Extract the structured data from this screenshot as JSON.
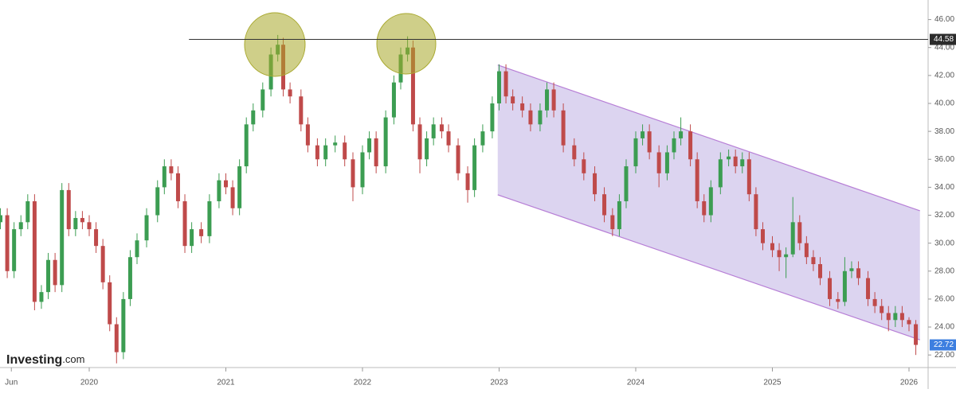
{
  "logo": {
    "brand": "Investing",
    "suffix": ".com"
  },
  "chart_data": {
    "type": "candlestick",
    "x": [
      2019.35,
      2019.4,
      2019.45,
      2019.5,
      2019.55,
      2019.6,
      2019.65,
      2019.7,
      2019.75,
      2019.8,
      2019.85,
      2019.9,
      2019.95,
      2020.0,
      2020.05,
      2020.1,
      2020.15,
      2020.2,
      2020.25,
      2020.3,
      2020.35,
      2020.42,
      2020.5,
      2020.55,
      2020.6,
      2020.65,
      2020.7,
      2020.75,
      2020.82,
      2020.88,
      2020.95,
      2021.0,
      2021.05,
      2021.1,
      2021.15,
      2021.2,
      2021.27,
      2021.33,
      2021.38,
      2021.42,
      2021.47,
      2021.55,
      2021.6,
      2021.67,
      2021.73,
      2021.8,
      2021.87,
      2021.93,
      2022.0,
      2022.05,
      2022.1,
      2022.17,
      2022.23,
      2022.28,
      2022.33,
      2022.37,
      2022.42,
      2022.47,
      2022.52,
      2022.58,
      2022.63,
      2022.7,
      2022.77,
      2022.82,
      2022.88,
      2022.95,
      2023.0,
      2023.05,
      2023.1,
      2023.17,
      2023.23,
      2023.3,
      2023.35,
      2023.4,
      2023.47,
      2023.55,
      2023.62,
      2023.7,
      2023.77,
      2023.83,
      2023.88,
      2023.93,
      2024.0,
      2024.05,
      2024.1,
      2024.17,
      2024.23,
      2024.28,
      2024.33,
      2024.4,
      2024.45,
      2024.5,
      2024.55,
      2024.62,
      2024.68,
      2024.73,
      2024.78,
      2024.83,
      2024.88,
      2024.93,
      2025.0,
      2025.05,
      2025.1,
      2025.15,
      2025.2,
      2025.25,
      2025.3,
      2025.35,
      2025.42,
      2025.48,
      2025.53,
      2025.58,
      2025.63,
      2025.7,
      2025.75,
      2025.8,
      2025.85,
      2025.9,
      2025.95,
      2026.0,
      2026.05
    ],
    "open": [
      31.5,
      32.0,
      28.0,
      31.0,
      31.5,
      33.0,
      25.8,
      26.5,
      28.8,
      27.0,
      33.8,
      31.0,
      31.8,
      31.5,
      31.0,
      29.8,
      27.2,
      24.2,
      22.2,
      26.0,
      29.0,
      30.2,
      32.0,
      34.0,
      35.5,
      35.0,
      33.0,
      29.8,
      31.0,
      30.5,
      33.0,
      34.5,
      34.0,
      32.5,
      35.5,
      38.5,
      39.5,
      41.0,
      43.5,
      44.2,
      41.0,
      40.5,
      38.5,
      37.0,
      36.0,
      37.0,
      37.2,
      36.0,
      34.0,
      36.5,
      37.5,
      35.5,
      39.0,
      41.5,
      43.5,
      44.0,
      38.5,
      36.0,
      37.5,
      38.5,
      38.0,
      37.0,
      35.0,
      33.8,
      37.0,
      38.0,
      40.0,
      42.3,
      40.5,
      40.0,
      39.5,
      38.5,
      39.5,
      41.0,
      39.5,
      37.0,
      36.0,
      35.0,
      33.5,
      32.0,
      31.0,
      33.0,
      35.5,
      37.5,
      38.0,
      36.5,
      35.0,
      36.5,
      37.5,
      38.0,
      36.0,
      33.0,
      32.0,
      34.0,
      36.0,
      36.2,
      35.5,
      36.0,
      33.5,
      31.0,
      30.0,
      29.5,
      29.0,
      29.2,
      31.5,
      30.0,
      29.0,
      28.5,
      27.5,
      26.0,
      25.8,
      28.0,
      28.2,
      27.5,
      26.0,
      25.5,
      25.0,
      24.5,
      25.0,
      24.5,
      24.2
    ],
    "high": [
      32.5,
      32.5,
      31.5,
      32.0,
      33.5,
      33.5,
      27.0,
      29.3,
      29.3,
      34.3,
      34.3,
      32.3,
      32.3,
      32.0,
      31.5,
      30.3,
      27.7,
      24.7,
      26.5,
      29.5,
      30.7,
      32.5,
      34.5,
      36.0,
      36.0,
      35.5,
      33.5,
      31.5,
      31.5,
      33.5,
      35.0,
      35.0,
      34.5,
      36.0,
      39.0,
      40.0,
      41.5,
      44.0,
      44.9,
      44.7,
      41.5,
      41.0,
      39.0,
      37.5,
      37.5,
      37.7,
      37.7,
      36.5,
      37.0,
      38.0,
      38.0,
      39.5,
      42.0,
      44.0,
      44.8,
      44.5,
      39.0,
      38.0,
      39.0,
      39.0,
      38.5,
      37.5,
      35.5,
      37.5,
      38.5,
      40.5,
      42.8,
      42.8,
      41.0,
      40.5,
      40.0,
      40.0,
      41.5,
      41.5,
      40.0,
      37.5,
      36.5,
      35.5,
      34.0,
      32.5,
      33.5,
      36.0,
      38.0,
      38.5,
      38.5,
      37.0,
      37.0,
      38.0,
      39.0,
      38.5,
      36.5,
      33.5,
      34.5,
      36.5,
      36.7,
      36.7,
      36.5,
      36.5,
      34.0,
      31.5,
      30.5,
      30.0,
      29.7,
      33.3,
      32.0,
      30.5,
      29.5,
      29.0,
      28.0,
      26.5,
      29.0,
      28.7,
      28.7,
      28.0,
      26.5,
      26.0,
      25.5,
      25.5,
      25.5,
      24.7,
      24.5
    ],
    "low": [
      31.0,
      27.5,
      27.5,
      30.5,
      31.0,
      25.2,
      25.3,
      26.0,
      26.5,
      26.5,
      30.5,
      30.5,
      31.0,
      30.5,
      29.3,
      26.7,
      23.7,
      21.4,
      21.7,
      25.5,
      28.5,
      29.7,
      31.5,
      33.5,
      34.5,
      32.5,
      29.3,
      29.3,
      30.0,
      30.0,
      32.5,
      33.5,
      32.0,
      32.0,
      35.0,
      38.0,
      39.0,
      40.5,
      43.0,
      40.5,
      40.0,
      38.0,
      36.5,
      35.5,
      35.5,
      36.5,
      35.5,
      33.0,
      33.5,
      36.0,
      35.0,
      35.0,
      38.5,
      41.0,
      43.0,
      38.0,
      35.0,
      35.5,
      37.0,
      37.5,
      36.5,
      34.5,
      32.9,
      33.3,
      36.5,
      37.5,
      39.5,
      40.0,
      39.5,
      39.0,
      38.0,
      38.0,
      39.0,
      39.0,
      36.5,
      35.5,
      34.5,
      33.0,
      31.5,
      30.5,
      30.5,
      32.5,
      35.0,
      37.0,
      36.0,
      34.0,
      34.5,
      36.0,
      37.0,
      35.5,
      32.5,
      31.5,
      31.5,
      33.5,
      35.5,
      35.0,
      35.0,
      33.0,
      30.5,
      29.5,
      29.0,
      28.0,
      27.5,
      29.0,
      29.5,
      28.5,
      28.0,
      27.0,
      25.5,
      25.3,
      25.5,
      27.5,
      27.0,
      25.5,
      25.0,
      24.5,
      23.7,
      24.0,
      24.0,
      23.7,
      22.0
    ],
    "close": [
      32.0,
      28.0,
      31.0,
      31.5,
      33.0,
      25.8,
      26.5,
      28.8,
      27.0,
      33.8,
      31.0,
      31.8,
      31.5,
      31.0,
      29.8,
      27.2,
      24.2,
      22.2,
      26.0,
      29.0,
      30.2,
      32.0,
      34.0,
      35.5,
      35.0,
      33.0,
      29.8,
      31.0,
      30.5,
      33.0,
      34.5,
      34.0,
      32.5,
      35.5,
      38.5,
      39.5,
      41.0,
      43.5,
      44.2,
      41.0,
      40.5,
      38.5,
      37.0,
      36.0,
      37.0,
      37.2,
      36.0,
      34.0,
      36.5,
      37.5,
      35.5,
      39.0,
      41.5,
      43.5,
      44.0,
      38.5,
      36.0,
      37.5,
      38.5,
      38.0,
      37.0,
      35.0,
      33.8,
      37.0,
      38.0,
      40.0,
      42.3,
      40.5,
      40.0,
      39.5,
      38.5,
      39.5,
      41.0,
      39.5,
      37.0,
      36.0,
      35.0,
      33.5,
      32.0,
      31.0,
      33.0,
      35.5,
      37.5,
      38.0,
      36.5,
      35.0,
      36.5,
      37.5,
      38.0,
      36.0,
      33.0,
      32.0,
      34.0,
      36.0,
      36.2,
      35.5,
      36.0,
      33.5,
      31.0,
      30.0,
      29.5,
      29.0,
      29.2,
      31.5,
      30.0,
      29.0,
      28.5,
      27.5,
      26.0,
      25.8,
      28.0,
      28.2,
      27.5,
      26.0,
      25.5,
      25.0,
      24.5,
      25.0,
      24.5,
      24.2,
      22.72
    ],
    "up_color": "#3c9d52",
    "down_color": "#bf4a4a",
    "xlim": [
      2019.347,
      2026.14
    ],
    "xticks": [
      {
        "value": 2019.43,
        "label": "Jun"
      },
      2020,
      2021,
      2022,
      2023,
      2024,
      2025,
      2026
    ],
    "ylim": [
      21.1,
      47.4
    ],
    "yticks": [
      {
        "value": 22,
        "label": "22.00"
      },
      {
        "value": 24,
        "label": "24.00"
      },
      {
        "value": 26,
        "label": "26.00"
      },
      {
        "value": 28,
        "label": "28.00"
      },
      {
        "value": 30,
        "label": "30.00"
      },
      {
        "value": 32,
        "label": "32.00"
      },
      {
        "value": 34,
        "label": "34.00"
      },
      {
        "value": 36,
        "label": "36.00"
      },
      {
        "value": 38,
        "label": "38.00"
      },
      {
        "value": 40,
        "label": "40.00"
      },
      {
        "value": 42,
        "label": "42.00"
      },
      {
        "value": 44,
        "label": "44.00"
      },
      {
        "value": 46,
        "label": "46.00"
      }
    ],
    "resistance": {
      "value": 44.58,
      "label": "44.58",
      "x_start": 2020.73
    },
    "last_price": {
      "value": 22.72,
      "label": "22.72"
    },
    "channel": {
      "x": [
        2022.99,
        2026.08
      ],
      "upper": [
        42.75,
        32.32
      ],
      "lower": [
        33.46,
        23.08
      ],
      "color": "#b77fd6"
    }
  }
}
